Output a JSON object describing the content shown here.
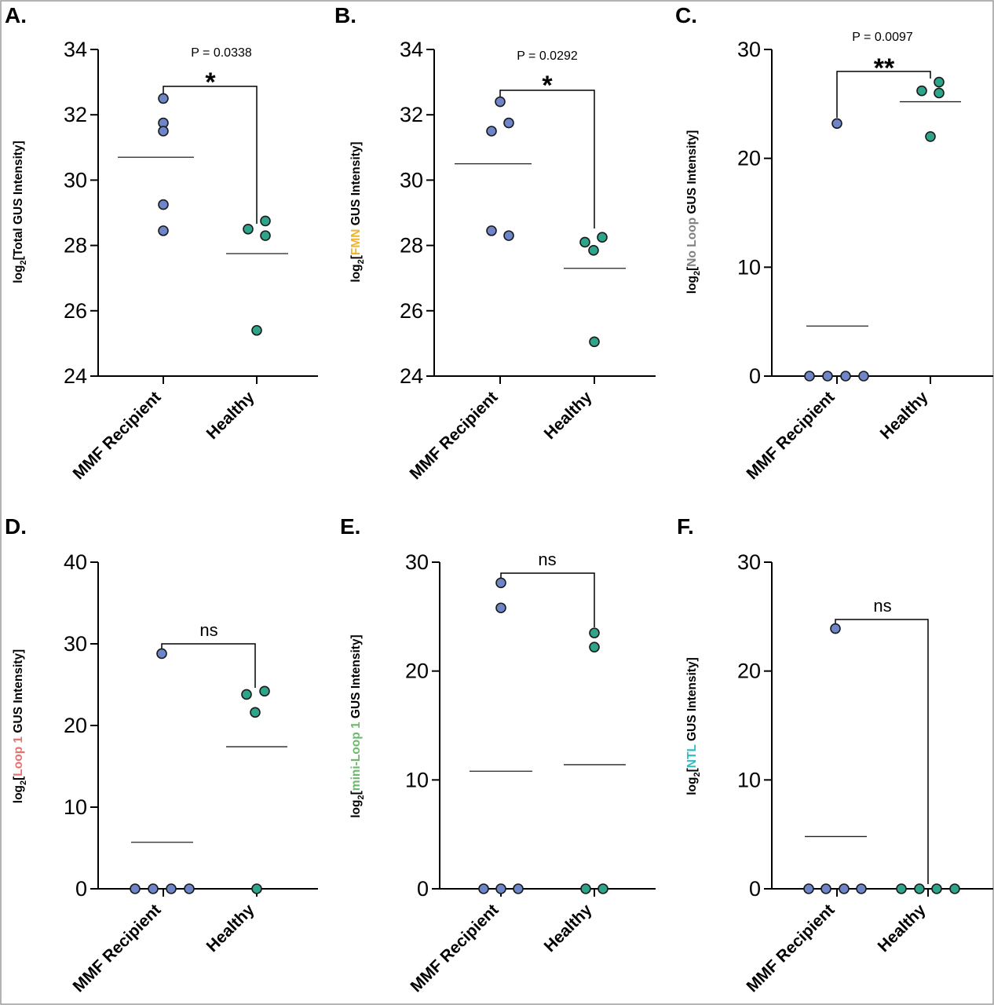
{
  "colors": {
    "mmf": "#6e86c9",
    "healthy": "#2ea58a",
    "fmn": "#f0b429",
    "noloop": "#7f7f7f",
    "loop1": "#e86f6f",
    "miniloop1": "#6db86d",
    "ntl": "#2bbcc4"
  },
  "chart_data": [
    {
      "type": "scatter",
      "panel": "A.",
      "ylabel": {
        "pre": "log",
        "sub": "2",
        "open": "[",
        "highlight": "Total",
        "rest": " GUS Intensity]"
      },
      "categories": [
        "MMF Recipient",
        "Healthy"
      ],
      "ylim": [
        24,
        34
      ],
      "yticks": [
        24,
        26,
        28,
        30,
        32,
        34
      ],
      "series": [
        {
          "values": [
            32.5,
            31.75,
            31.5,
            29.25,
            28.45
          ]
        },
        {
          "values": [
            28.5,
            28.75,
            28.3,
            25.4
          ]
        }
      ],
      "means": [
        30.7,
        27.75
      ],
      "annotation": {
        "pvalue": "P = 0.0338",
        "significance": "*"
      }
    },
    {
      "type": "scatter",
      "panel": "B.",
      "ylabel": {
        "pre": "log",
        "sub": "2",
        "open": "[",
        "highlight": "FMN",
        "rest": " GUS Intensity]"
      },
      "categories": [
        "MMF Recipient",
        "Healthy"
      ],
      "ylim": [
        24,
        34
      ],
      "yticks": [
        24,
        26,
        28,
        30,
        32,
        34
      ],
      "series": [
        {
          "values": [
            32.4,
            31.75,
            31.5,
            28.45,
            28.3
          ]
        },
        {
          "values": [
            28.1,
            28.25,
            27.85,
            25.05
          ]
        }
      ],
      "means": [
        30.5,
        27.3
      ],
      "annotation": {
        "pvalue": "P = 0.0292",
        "significance": "*"
      }
    },
    {
      "type": "scatter",
      "panel": "C.",
      "ylabel": {
        "pre": "log",
        "sub": "2",
        "open": "[",
        "highlight": "No Loop",
        "rest": " GUS Intensity]"
      },
      "categories": [
        "MMF Recipient",
        "Healthy"
      ],
      "ylim": [
        0,
        30
      ],
      "yticks": [
        0,
        10,
        20,
        30
      ],
      "series": [
        {
          "values": [
            23.2,
            0,
            0,
            0,
            0
          ]
        },
        {
          "values": [
            26.2,
            27.0,
            26.0,
            22.0
          ]
        }
      ],
      "means": [
        4.6,
        25.2
      ],
      "annotation": {
        "pvalue": "P = 0.0097",
        "significance": "**"
      }
    },
    {
      "type": "scatter",
      "panel": "D.",
      "ylabel": {
        "pre": "log",
        "sub": "2",
        "open": "[",
        "highlight": "Loop 1",
        "rest": " GUS Intensity]"
      },
      "categories": [
        "MMF Recipient",
        "Healthy"
      ],
      "ylim": [
        0,
        40
      ],
      "yticks": [
        0,
        10,
        20,
        30,
        40
      ],
      "series": [
        {
          "values": [
            28.8,
            0,
            0,
            0,
            0
          ]
        },
        {
          "values": [
            23.8,
            24.2,
            21.6,
            0
          ]
        }
      ],
      "means": [
        5.7,
        17.4
      ],
      "annotation": {
        "pvalue": "",
        "significance": "ns"
      }
    },
    {
      "type": "scatter",
      "panel": "E.",
      "ylabel": {
        "pre": "log",
        "sub": "2",
        "open": "[",
        "highlight": "mini-Loop 1",
        "rest": " GUS Intensity]"
      },
      "categories": [
        "MMF Recipient",
        "Healthy"
      ],
      "ylim": [
        0,
        30
      ],
      "yticks": [
        0,
        10,
        20,
        30
      ],
      "series": [
        {
          "values": [
            28.1,
            25.8,
            0,
            0,
            0
          ]
        },
        {
          "values": [
            23.5,
            22.2,
            0,
            0
          ]
        }
      ],
      "means": [
        10.8,
        11.4
      ],
      "annotation": {
        "pvalue": "",
        "significance": "ns"
      }
    },
    {
      "type": "scatter",
      "panel": "F.",
      "ylabel": {
        "pre": "log",
        "sub": "2",
        "open": "[",
        "highlight": "NTL",
        "rest": " GUS Intensity]"
      },
      "categories": [
        "MMF Recipient",
        "Healthy"
      ],
      "ylim": [
        0,
        30
      ],
      "yticks": [
        0,
        10,
        20,
        30
      ],
      "series": [
        {
          "values": [
            23.9,
            0,
            0,
            0,
            0
          ]
        },
        {
          "values": [
            0,
            0,
            0,
            0
          ]
        }
      ],
      "means": [
        4.8,
        0
      ],
      "annotation": {
        "pvalue": "",
        "significance": "ns"
      }
    }
  ]
}
